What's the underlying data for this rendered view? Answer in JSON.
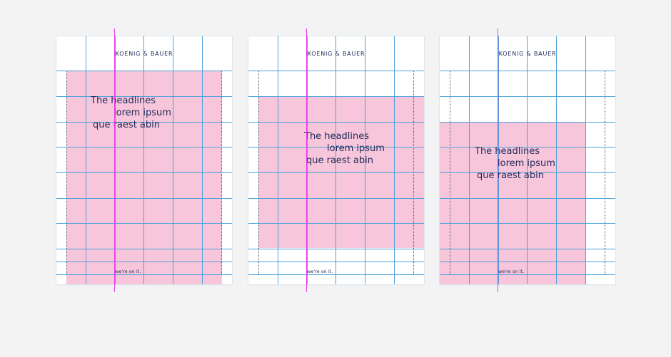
{
  "panels": [
    {
      "logo": "KOENIG & BAUER",
      "headline": [
        "The headlines",
        "lorem ipsum",
        "que raest abin"
      ],
      "tagline": "we're on it."
    },
    {
      "logo": "KOENIG & BAUER",
      "headline": [
        "The headlines",
        "lorem ipsum",
        "que raest abin"
      ],
      "tagline": "we're on it."
    },
    {
      "logo": "KOENIG & BAUER",
      "headline": [
        "The headlines",
        "lorem ipsum",
        "que raest abin"
      ],
      "tagline": "we're on it."
    }
  ],
  "colors": {
    "background": "#f3f3f3",
    "page": "#ffffff",
    "pink_block": "#f8c6da",
    "grid_line": "#4aa2dd",
    "guide_line": "#e53ee8",
    "text": "#1f2a5a"
  }
}
